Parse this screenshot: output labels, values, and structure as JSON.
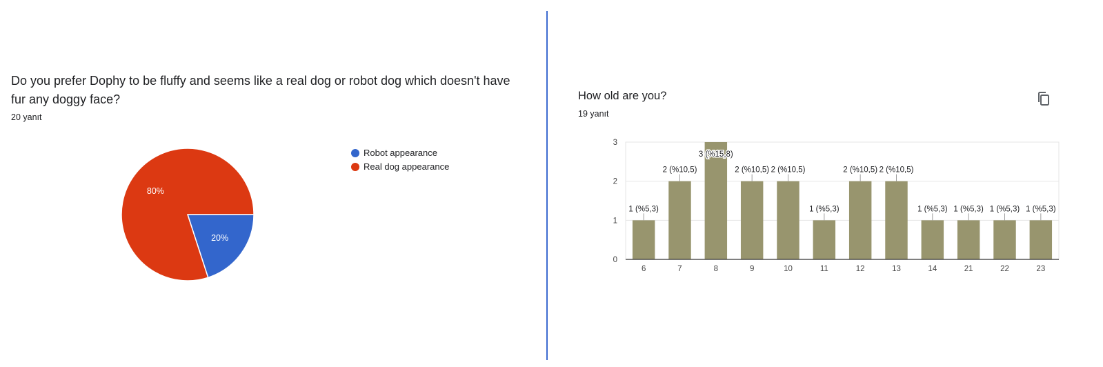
{
  "chart_data": [
    {
      "type": "pie",
      "title": "Do you prefer Dophy to be fluffy and seems like a real dog or robot dog which doesn't have fur any doggy face?",
      "response_count": "20 yanıt",
      "slices": [
        {
          "name": "Robot appearance",
          "value": 20,
          "label": "20%",
          "color": "#3366cc"
        },
        {
          "name": "Real dog appearance",
          "value": 80,
          "label": "80%",
          "color": "#dc3912"
        }
      ],
      "legend_position": "right"
    },
    {
      "type": "bar",
      "title": "How old are you?",
      "response_count": "19 yanıt",
      "categories": [
        "6",
        "7",
        "8",
        "9",
        "10",
        "11",
        "12",
        "13",
        "14",
        "21",
        "22",
        "23"
      ],
      "values": [
        1,
        2,
        3,
        2,
        2,
        1,
        2,
        2,
        1,
        1,
        1,
        1
      ],
      "data_labels": [
        "1 (%5,3)",
        "2 (%10,5)",
        "3 (%15,8)",
        "2 (%10,5)",
        "2 (%10,5)",
        "1 (%5,3)",
        "2 (%10,5)",
        "2 (%10,5)",
        "1 (%5,3)",
        "1 (%5,3)",
        "1 (%5,3)",
        "1 (%5,3)"
      ],
      "y_ticks": [
        "0",
        "1",
        "2",
        "3"
      ],
      "ylim": [
        0,
        3
      ],
      "grid": true,
      "bar_color": "#98956e"
    }
  ],
  "icons": {
    "copy": "copy-icon"
  }
}
